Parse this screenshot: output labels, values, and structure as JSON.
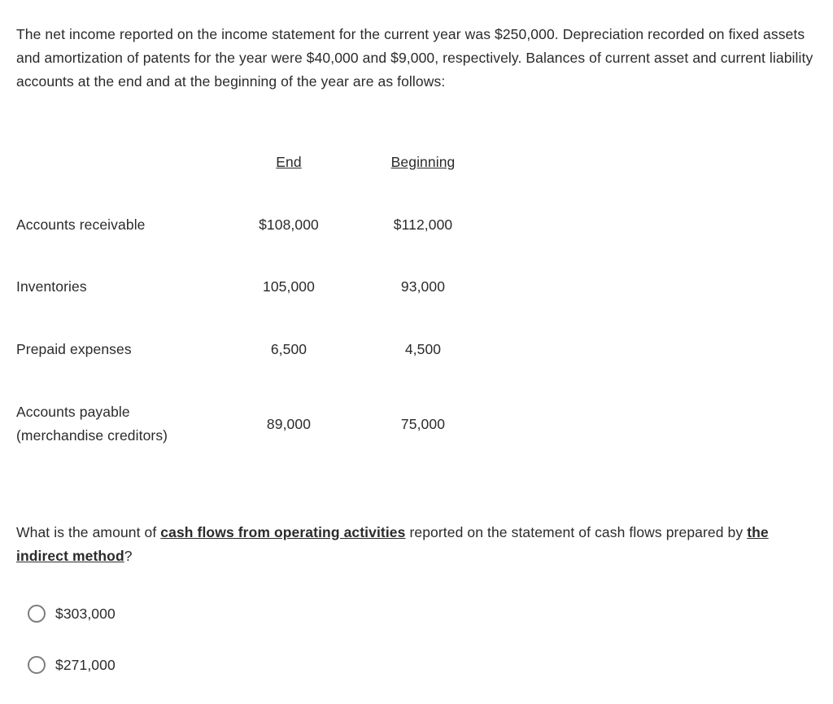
{
  "intro": "The net income reported on the income statement for the current year was $250,000.  Depreciation recorded on fixed assets and amortization of patents for the year were $40,000 and $9,000, respectively.  Balances of current asset and current liability accounts at the end and at the beginning of the year are as follows:",
  "table": {
    "headers": {
      "end": "End",
      "beginning": " Beginning"
    },
    "rows": [
      {
        "label": "Accounts receivable",
        "end": "$108,000",
        "beginning": "$112,000"
      },
      {
        "label": "Inventories",
        "end": "105,000",
        "beginning": "93,000"
      },
      {
        "label": "Prepaid expenses",
        "end": "6,500",
        "beginning": "4,500"
      },
      {
        "label": "Accounts payable (merchandise creditors)",
        "label_line1": "Accounts payable",
        "label_line2": "(merchandise creditors)",
        "end": "89,000",
        "beginning": "75,000"
      }
    ]
  },
  "question": {
    "pre": "What is the amount of ",
    "u1": "cash flows from operating activities",
    "mid": " reported on the statement of cash flows prepared by ",
    "u2": "the indirect method",
    "post": "?"
  },
  "choices": [
    {
      "label": "$303,000"
    },
    {
      "label": "$271,000"
    }
  ]
}
